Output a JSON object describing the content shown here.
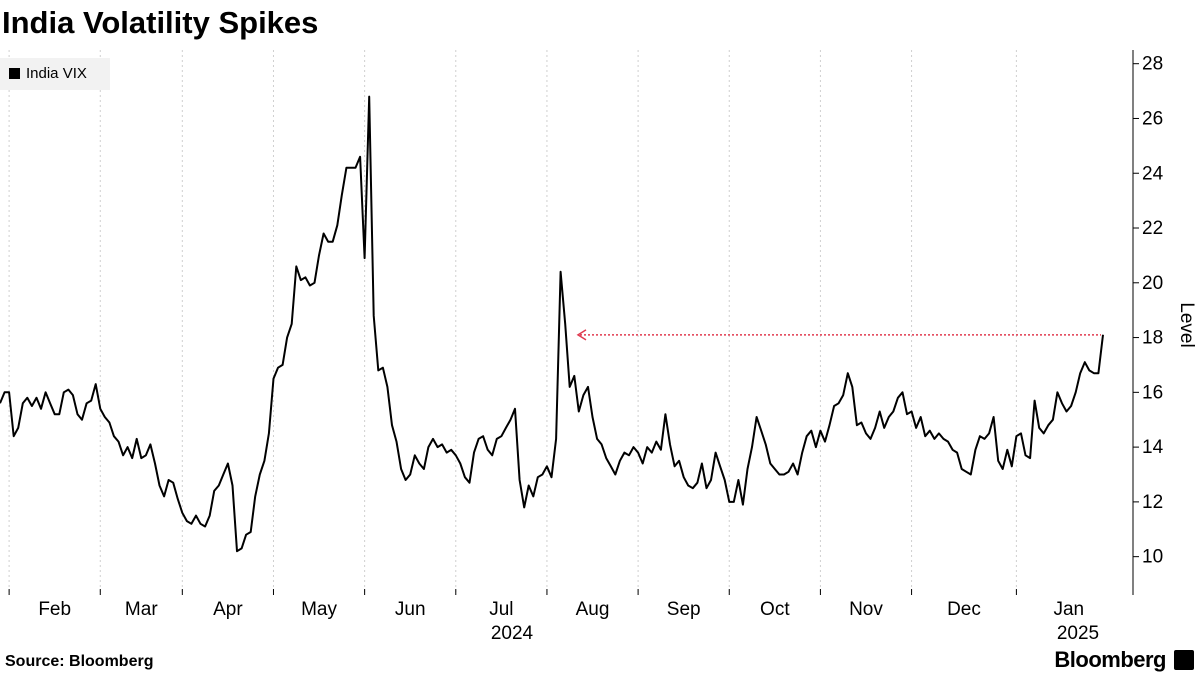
{
  "chart_data": {
    "type": "line",
    "title": "India Volatility Spikes",
    "source": "Source: Bloomberg",
    "brand": "Bloomberg",
    "y_label": "Level",
    "year_labels": [
      "2024",
      "2025"
    ],
    "categories": [
      null,
      null,
      "Feb",
      null,
      null,
      null,
      null,
      null,
      null,
      null,
      null,
      null,
      null,
      null,
      null,
      null,
      null,
      null,
      null,
      null,
      null,
      null,
      "Mar",
      null,
      null,
      null,
      null,
      null,
      null,
      null,
      null,
      null,
      null,
      null,
      null,
      null,
      null,
      null,
      null,
      null,
      "Apr",
      null,
      null,
      null,
      null,
      null,
      null,
      null,
      null,
      null,
      null,
      null,
      null,
      null,
      null,
      null,
      null,
      null,
      null,
      null,
      "May",
      null,
      null,
      null,
      null,
      null,
      null,
      null,
      null,
      null,
      null,
      null,
      null,
      null,
      null,
      null,
      null,
      null,
      null,
      null,
      "Jun",
      null,
      null,
      null,
      null,
      null,
      null,
      null,
      null,
      null,
      null,
      null,
      null,
      null,
      null,
      null,
      null,
      null,
      null,
      null,
      "Jul",
      null,
      null,
      null,
      null,
      null,
      null,
      null,
      null,
      null,
      null,
      null,
      null,
      null,
      null,
      null,
      null,
      null,
      null,
      null,
      "Aug",
      null,
      null,
      null,
      null,
      null,
      null,
      null,
      null,
      null,
      null,
      null,
      null,
      null,
      null,
      null,
      null,
      null,
      null,
      null,
      "Sep",
      null,
      null,
      null,
      null,
      null,
      null,
      null,
      null,
      null,
      null,
      null,
      null,
      null,
      null,
      null,
      null,
      null,
      null,
      null,
      "Oct",
      null,
      null,
      null,
      null,
      null,
      null,
      null,
      null,
      null,
      null,
      null,
      null,
      null,
      null,
      null,
      null,
      null,
      null,
      null,
      "Nov",
      null,
      null,
      null,
      null,
      null,
      null,
      null,
      null,
      null,
      null,
      null,
      null,
      null,
      null,
      null,
      null,
      null,
      null,
      null,
      "Dec",
      null,
      null,
      null,
      null,
      null,
      null,
      null,
      null,
      null,
      null,
      null,
      null,
      null,
      null,
      null,
      null,
      null,
      null,
      null,
      null,
      null,
      null,
      "Jan",
      null,
      null,
      null,
      null,
      null,
      null,
      null,
      null,
      null,
      null,
      null,
      null,
      null,
      null,
      null,
      null,
      null,
      null,
      null
    ],
    "series": [
      {
        "name": "India VIX",
        "color": "#000000",
        "values": [
          15.6,
          16.0,
          16.0,
          14.4,
          14.7,
          15.6,
          15.8,
          15.5,
          15.8,
          15.4,
          16.0,
          15.6,
          15.2,
          15.2,
          16.0,
          16.1,
          15.9,
          15.2,
          15.0,
          15.6,
          15.7,
          16.3,
          15.4,
          15.1,
          14.9,
          14.4,
          14.2,
          13.7,
          14.0,
          13.6,
          14.3,
          13.6,
          13.7,
          14.1,
          13.4,
          12.6,
          12.2,
          12.8,
          12.7,
          12.1,
          11.6,
          11.3,
          11.2,
          11.5,
          11.2,
          11.1,
          11.5,
          12.4,
          12.6,
          13.0,
          13.4,
          12.6,
          10.2,
          10.3,
          10.8,
          10.9,
          12.2,
          13.0,
          13.5,
          14.5,
          16.5,
          16.9,
          17.0,
          18.0,
          18.5,
          20.6,
          20.1,
          20.2,
          19.9,
          20.0,
          21.0,
          21.8,
          21.5,
          21.5,
          22.1,
          23.2,
          24.2,
          24.2,
          24.2,
          24.6,
          20.9,
          26.8,
          18.8,
          16.8,
          16.9,
          16.2,
          14.8,
          14.2,
          13.2,
          12.8,
          13.0,
          13.7,
          13.4,
          13.2,
          14.0,
          14.3,
          14.0,
          14.1,
          13.8,
          13.9,
          13.7,
          13.4,
          12.9,
          12.7,
          13.8,
          14.3,
          14.4,
          13.9,
          13.7,
          14.3,
          14.4,
          14.7,
          15.0,
          15.4,
          12.8,
          11.8,
          12.6,
          12.2,
          12.9,
          13.0,
          13.3,
          12.9,
          14.3,
          20.4,
          18.5,
          16.2,
          16.6,
          15.3,
          15.9,
          16.2,
          15.1,
          14.3,
          14.1,
          13.6,
          13.3,
          13.0,
          13.5,
          13.8,
          13.7,
          14.0,
          13.8,
          13.4,
          14.0,
          13.8,
          14.2,
          13.9,
          15.2,
          14.1,
          13.3,
          13.5,
          12.9,
          12.6,
          12.5,
          12.7,
          13.4,
          12.5,
          12.8,
          13.8,
          13.3,
          12.8,
          12.0,
          12.0,
          12.8,
          11.9,
          13.2,
          14.0,
          15.1,
          14.6,
          14.1,
          13.4,
          13.2,
          13.0,
          13.0,
          13.1,
          13.4,
          13.0,
          13.8,
          14.4,
          14.6,
          14.0,
          14.6,
          14.2,
          14.8,
          15.5,
          15.6,
          15.9,
          16.7,
          16.2,
          14.8,
          14.9,
          14.5,
          14.3,
          14.7,
          15.3,
          14.7,
          15.1,
          15.3,
          15.8,
          16.0,
          15.2,
          15.3,
          14.7,
          15.1,
          14.4,
          14.6,
          14.3,
          14.5,
          14.3,
          14.2,
          13.9,
          13.8,
          13.2,
          13.1,
          13.0,
          13.9,
          14.4,
          14.3,
          14.5,
          15.1,
          13.5,
          13.2,
          13.9,
          13.3,
          14.4,
          14.5,
          13.7,
          13.6,
          15.7,
          14.7,
          14.5,
          14.8,
          15.0,
          16.0,
          15.6,
          15.3,
          15.5,
          16.0,
          16.7,
          17.1,
          16.8,
          16.7,
          16.7,
          18.1
        ]
      }
    ],
    "ylim": [
      8.6,
      28.5
    ],
    "yticks": [
      10,
      12,
      14,
      16,
      18,
      20,
      22,
      24,
      26,
      28
    ],
    "annotation_color": "#e0394f",
    "grid": true
  }
}
